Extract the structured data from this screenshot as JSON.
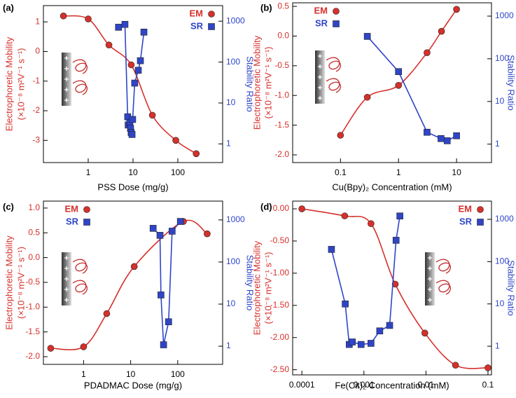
{
  "chart_data": [
    {
      "type": "line",
      "panel_label": "(a)",
      "x_label": "PSS Dose (mg/g)",
      "y_label": "Electrophoretic Mobility",
      "y_units": "(×10⁻⁸ m²V⁻¹ s⁻¹)",
      "y2_label": "Stability Ratio",
      "xscale": "log",
      "y2scale": "log",
      "legend": "upper right",
      "xlim": [
        0.1,
        1000
      ],
      "xticks": [
        1,
        10,
        100
      ],
      "ylim": [
        -3.75,
        1.55
      ],
      "yticks": [
        1,
        0,
        -1,
        -2,
        -3
      ],
      "y2lim": [
        0.35,
        2400
      ],
      "y2ticks": [
        1,
        10,
        100,
        1000
      ],
      "series": [
        {
          "name": "EM",
          "color": "#d6302b",
          "marker": "circle",
          "line": "smooth",
          "x": [
            0.28,
            1,
            2.9,
            9.1,
            27,
            90,
            257
          ],
          "values": [
            1.2,
            1.1,
            0.22,
            -0.45,
            -2.15,
            -3.0,
            -3.45
          ]
        },
        {
          "name": "SR",
          "color": "#2f45c8",
          "marker": "square",
          "line": "straight",
          "axis": "y2",
          "x": [
            4.75,
            6.6,
            7.6,
            7.8,
            8.5,
            8.8,
            9.1,
            9.5,
            9.8,
            10.9,
            13.1,
            14.6,
            17.5
          ],
          "values": [
            710,
            835,
            4.6,
            2.9,
            3.3,
            2.4,
            1.9,
            1.7,
            3.96,
            30.7,
            63,
            108,
            540
          ]
        }
      ]
    },
    {
      "type": "line",
      "panel_label": "(b)",
      "x_label": "Cu(Bpy)₂ Concentration (mM)",
      "y_label": "Electrophoretic Mobility",
      "y_units": "(×10⁻⁸ m²V⁻¹ s⁻¹)",
      "y2_label": "Stability Ratio",
      "xscale": "log",
      "y2scale": "log",
      "legend": "upper left",
      "xlim": [
        0.015,
        40
      ],
      "xticks": [
        0.1,
        1,
        10
      ],
      "ylim": [
        -2.13,
        0.56
      ],
      "yticks": [
        0.5,
        {
          "value": 0,
          "label": "0.0"
        },
        -0.5,
        {
          "value": -1,
          "label": "-1.0"
        },
        -1.5,
        {
          "value": -2,
          "label": "-2.0"
        }
      ],
      "y2lim": [
        0.37,
        2050
      ],
      "y2ticks": [
        1,
        10,
        100,
        1000
      ],
      "series": [
        {
          "name": "EM",
          "color": "#d6302b",
          "marker": "circle",
          "line": "smooth",
          "x": [
            0.1,
            0.29,
            1,
            3.1,
            5.5,
            10
          ],
          "values": [
            -1.67,
            -1.03,
            -0.83,
            -0.28,
            0.08,
            0.45
          ]
        },
        {
          "name": "SR",
          "color": "#2f45c8",
          "marker": "square",
          "line": "straight",
          "axis": "y2",
          "x": [
            0.29,
            1,
            3.1,
            5.4,
            6.9,
            10
          ],
          "values": [
            335,
            50,
            1.9,
            1.35,
            1.2,
            1.57
          ]
        }
      ]
    },
    {
      "type": "line",
      "panel_label": "(c)",
      "x_label": "PDADMAC Dose (mg/g)",
      "y_label": "Electrophoretic Mobility",
      "y_units": "(×10⁻⁸ m²V⁻¹ s⁻¹)",
      "y2_label": "Stability Ratio",
      "xscale": "log",
      "y2scale": "log",
      "legend": "upper left",
      "xlim": [
        0.14,
        900
      ],
      "xticks": [
        1,
        10,
        100
      ],
      "ylim": [
        -2.155,
        1.14
      ],
      "yticks": [
        {
          "value": 1,
          "label": "1.0"
        },
        0.5,
        {
          "value": 0,
          "label": "0.0"
        },
        -0.5,
        {
          "value": -1,
          "label": "-1.0"
        },
        -1.5,
        {
          "value": -2,
          "label": "-2.0"
        }
      ],
      "y2lim": [
        0.37,
        2800
      ],
      "y2ticks": [
        1,
        10,
        100,
        1000
      ],
      "series": [
        {
          "name": "EM",
          "color": "#d6302b",
          "marker": "circle",
          "line": "smooth",
          "x": [
            0.2,
            1,
            3.1,
            11.9,
            132,
            422
          ],
          "values": [
            -1.83,
            -1.8,
            -1.13,
            -0.18,
            0.73,
            0.48
          ]
        },
        {
          "name": "SR",
          "color": "#2f45c8",
          "marker": "square",
          "line": "straight",
          "axis": "y2",
          "x": [
            30,
            42,
            44,
            50,
            64,
            76,
            114
          ],
          "values": [
            631,
            430,
            16.5,
            1.08,
            3.8,
            540,
            920
          ]
        }
      ]
    },
    {
      "type": "line",
      "panel_label": "(d)",
      "x_label": "Fe(Cit)₂ Concentration (mM)",
      "y_label": "Electrophoretic Mobility",
      "y_units": "(×10⁻⁸ m²V⁻¹ s⁻¹)",
      "y2_label": "Stability Ratio",
      "xscale": "log",
      "y2scale": "log",
      "legend": "upper right",
      "xlim": [
        7.1e-05,
        0.114
      ],
      "xticks": [
        0.0001,
        0.001,
        0.01,
        0.1
      ],
      "ylim": [
        -2.58,
        0.12
      ],
      "yticks": [
        {
          "value": 0,
          "label": "0.00"
        },
        {
          "value": -0.5,
          "label": "-0.50"
        },
        {
          "value": -1,
          "label": "-1.00"
        },
        {
          "value": -1.5,
          "label": "-1.50"
        },
        {
          "value": -2,
          "label": "-2.00"
        },
        {
          "value": -2.5,
          "label": "-2.50"
        }
      ],
      "y2lim": [
        0.21,
        2700
      ],
      "y2ticks": [
        1,
        10,
        100,
        1000
      ],
      "series": [
        {
          "name": "EM",
          "color": "#d6302b",
          "marker": "circle",
          "line": "smooth",
          "x": [
            0.0001,
            0.00049,
            0.0013,
            0.0032,
            0.0096,
            0.03,
            0.1
          ],
          "values": [
            0.0,
            -0.11,
            -0.23,
            -1.17,
            -1.93,
            -2.43,
            -2.47
          ]
        },
        {
          "name": "SR",
          "color": "#2f45c8",
          "marker": "square",
          "line": "straight",
          "axis": "y2",
          "x": [
            0.0003,
            0.0005,
            0.00058,
            0.00065,
            0.0009,
            0.0013,
            0.0018,
            0.0026,
            0.0033,
            0.0038
          ],
          "values": [
            195,
            10,
            1.1,
            1.26,
            1.1,
            1.17,
            2.3,
            3.1,
            320,
            1200
          ]
        }
      ]
    }
  ]
}
